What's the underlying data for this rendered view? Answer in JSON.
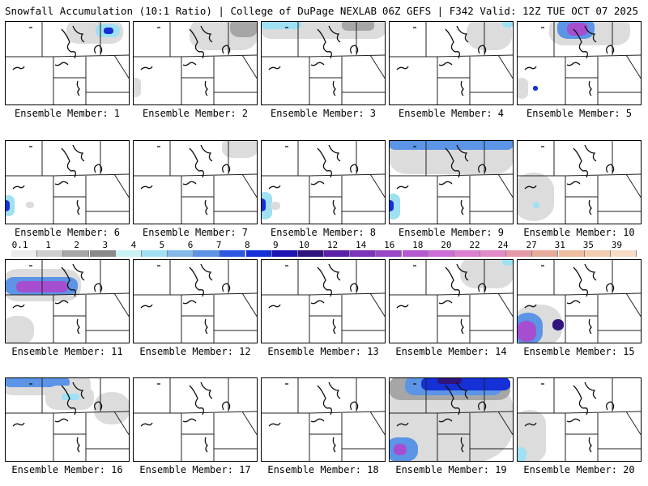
{
  "header": {
    "left": "Snowfall Accumulation (10:1 Ratio) | College of DuPage NEXLAB",
    "right": "06Z GEFS | F342 Valid: 12Z TUE OCT 07 2025"
  },
  "colorbar": {
    "ticks": [
      "0.1",
      "1",
      "2",
      "3",
      "4",
      "5",
      "6",
      "7",
      "8",
      "9",
      "10",
      "12",
      "14",
      "16",
      "18",
      "20",
      "22",
      "24",
      "27",
      "31",
      "35",
      "39"
    ],
    "colors": [
      "#ececec",
      "#cfcfcf",
      "#a8a8a8",
      "#8a8a8a",
      "#c9f2f5",
      "#9fe0f3",
      "#84b9ea",
      "#5c94e6",
      "#2d59e0",
      "#1430d6",
      "#1d13b3",
      "#30147e",
      "#5a1fa8",
      "#7d34b9",
      "#9a47c6",
      "#b459cf",
      "#cb6cd8",
      "#dc7fd2",
      "#e38bc6",
      "#e59aa9",
      "#e7ab9b",
      "#eebc9f",
      "#f3cdb2",
      "#f7ddc6"
    ]
  },
  "members": [
    {
      "label": "Ensemble Member: 1",
      "blobs": [
        {
          "x": 76,
          "y": -2,
          "w": 70,
          "h": 30,
          "l": 1
        },
        {
          "x": 112,
          "y": 4,
          "w": 30,
          "h": 16,
          "l": 3
        },
        {
          "x": 122,
          "y": 8,
          "w": 12,
          "h": 8,
          "l": 5
        }
      ]
    },
    {
      "label": "Ensemble Member: 2",
      "blobs": [
        {
          "x": 70,
          "y": -4,
          "w": 84,
          "h": 40,
          "l": 1
        },
        {
          "x": 120,
          "y": -4,
          "w": 34,
          "h": 24,
          "l": 2
        },
        {
          "x": -4,
          "y": 70,
          "w": 14,
          "h": 24,
          "l": 1
        }
      ]
    },
    {
      "label": "Ensemble Member: 3",
      "blobs": [
        {
          "x": 0,
          "y": -4,
          "w": 154,
          "h": 26,
          "l": 1
        },
        {
          "x": 0,
          "y": -2,
          "w": 50,
          "h": 12,
          "l": 3
        },
        {
          "x": 100,
          "y": -2,
          "w": 40,
          "h": 14,
          "l": 2
        }
      ]
    },
    {
      "label": "Ensemble Member: 4",
      "blobs": [
        {
          "x": 96,
          "y": -4,
          "w": 56,
          "h": 40,
          "l": 1
        },
        {
          "x": 140,
          "y": -2,
          "w": 14,
          "h": 10,
          "l": 3
        }
      ]
    },
    {
      "label": "Ensemble Member: 5",
      "blobs": [
        {
          "x": 40,
          "y": -6,
          "w": 100,
          "h": 36,
          "l": 1
        },
        {
          "x": 50,
          "y": -4,
          "w": 46,
          "h": 26,
          "l": 4
        },
        {
          "x": 62,
          "y": 2,
          "w": 26,
          "h": 16,
          "l": 7
        },
        {
          "x": -2,
          "y": 70,
          "w": 16,
          "h": 26,
          "l": 1
        },
        {
          "x": 20,
          "y": 80,
          "w": 6,
          "h": 6,
          "l": 5
        }
      ]
    },
    {
      "label": "Ensemble Member: 6",
      "blobs": [
        {
          "x": -4,
          "y": 68,
          "w": 16,
          "h": 26,
          "l": 3
        },
        {
          "x": -4,
          "y": 74,
          "w": 10,
          "h": 14,
          "l": 5
        },
        {
          "x": 26,
          "y": 76,
          "w": 10,
          "h": 8,
          "l": 1
        }
      ]
    },
    {
      "label": "Ensemble Member: 7",
      "blobs": [
        {
          "x": 110,
          "y": -4,
          "w": 44,
          "h": 26,
          "l": 1
        }
      ]
    },
    {
      "label": "Ensemble Member: 8",
      "blobs": [
        {
          "x": -4,
          "y": 64,
          "w": 18,
          "h": 34,
          "l": 3
        },
        {
          "x": -4,
          "y": 72,
          "w": 10,
          "h": 16,
          "l": 5
        },
        {
          "x": 12,
          "y": 76,
          "w": 12,
          "h": 10,
          "l": 1
        }
      ]
    },
    {
      "label": "Ensemble Member: 9",
      "blobs": [
        {
          "x": 0,
          "y": -4,
          "w": 154,
          "h": 46,
          "l": 1
        },
        {
          "x": 0,
          "y": -4,
          "w": 154,
          "h": 16,
          "l": 4
        },
        {
          "x": -4,
          "y": 66,
          "w": 18,
          "h": 32,
          "l": 3
        },
        {
          "x": -4,
          "y": 74,
          "w": 10,
          "h": 14,
          "l": 5
        }
      ]
    },
    {
      "label": "Ensemble Member: 10",
      "blobs": [
        {
          "x": -4,
          "y": 40,
          "w": 50,
          "h": 60,
          "l": 1
        },
        {
          "x": 20,
          "y": 76,
          "w": 8,
          "h": 8,
          "l": 3
        }
      ]
    },
    {
      "label": "Ensemble Member: 11",
      "blobs": [
        {
          "x": -4,
          "y": 12,
          "w": 98,
          "h": 40,
          "l": 1
        },
        {
          "x": 0,
          "y": 22,
          "w": 90,
          "h": 22,
          "l": 4
        },
        {
          "x": 14,
          "y": 27,
          "w": 64,
          "h": 14,
          "l": 7
        },
        {
          "x": -4,
          "y": 70,
          "w": 40,
          "h": 36,
          "l": 1
        }
      ]
    },
    {
      "label": "Ensemble Member: 12",
      "blobs": []
    },
    {
      "label": "Ensemble Member: 13",
      "blobs": []
    },
    {
      "label": "Ensemble Member: 14",
      "blobs": [
        {
          "x": 88,
          "y": -4,
          "w": 66,
          "h": 40,
          "l": 1
        },
        {
          "x": 140,
          "y": -2,
          "w": 14,
          "h": 10,
          "l": 3
        }
      ]
    },
    {
      "label": "Ensemble Member: 15",
      "blobs": [
        {
          "x": -4,
          "y": 56,
          "w": 60,
          "h": 52,
          "l": 1
        },
        {
          "x": -4,
          "y": 66,
          "w": 36,
          "h": 40,
          "l": 4
        },
        {
          "x": 0,
          "y": 76,
          "w": 24,
          "h": 26,
          "l": 7
        },
        {
          "x": 44,
          "y": 74,
          "w": 14,
          "h": 14,
          "l": 6
        }
      ]
    },
    {
      "label": "Ensemble Member: 16",
      "blobs": [
        {
          "x": -4,
          "y": -4,
          "w": 110,
          "h": 26,
          "l": 1
        },
        {
          "x": 0,
          "y": 0,
          "w": 80,
          "h": 12,
          "l": 4
        },
        {
          "x": 50,
          "y": 10,
          "w": 60,
          "h": 30,
          "l": 1
        },
        {
          "x": 70,
          "y": 20,
          "w": 22,
          "h": 8,
          "l": 3
        },
        {
          "x": 110,
          "y": 18,
          "w": 44,
          "h": 40,
          "l": 1
        }
      ]
    },
    {
      "label": "Ensemble Member: 17",
      "blobs": []
    },
    {
      "label": "Ensemble Member: 18",
      "blobs": []
    },
    {
      "label": "Ensemble Member: 19",
      "blobs": [
        {
          "x": -4,
          "y": -4,
          "w": 158,
          "h": 110,
          "l": 1
        },
        {
          "x": 0,
          "y": -2,
          "w": 150,
          "h": 30,
          "l": 2
        },
        {
          "x": 20,
          "y": -2,
          "w": 120,
          "h": 24,
          "l": 4
        },
        {
          "x": 40,
          "y": 0,
          "w": 110,
          "h": 16,
          "l": 5
        },
        {
          "x": 60,
          "y": 0,
          "w": 30,
          "h": 8,
          "l": 6
        },
        {
          "x": -4,
          "y": 74,
          "w": 40,
          "h": 30,
          "l": 4
        },
        {
          "x": 6,
          "y": 82,
          "w": 16,
          "h": 14,
          "l": 7
        }
      ]
    },
    {
      "label": "Ensemble Member: 20",
      "blobs": [
        {
          "x": -4,
          "y": 40,
          "w": 40,
          "h": 66,
          "l": 1
        },
        {
          "x": -4,
          "y": 86,
          "w": 16,
          "h": 18,
          "l": 3
        }
      ]
    }
  ]
}
